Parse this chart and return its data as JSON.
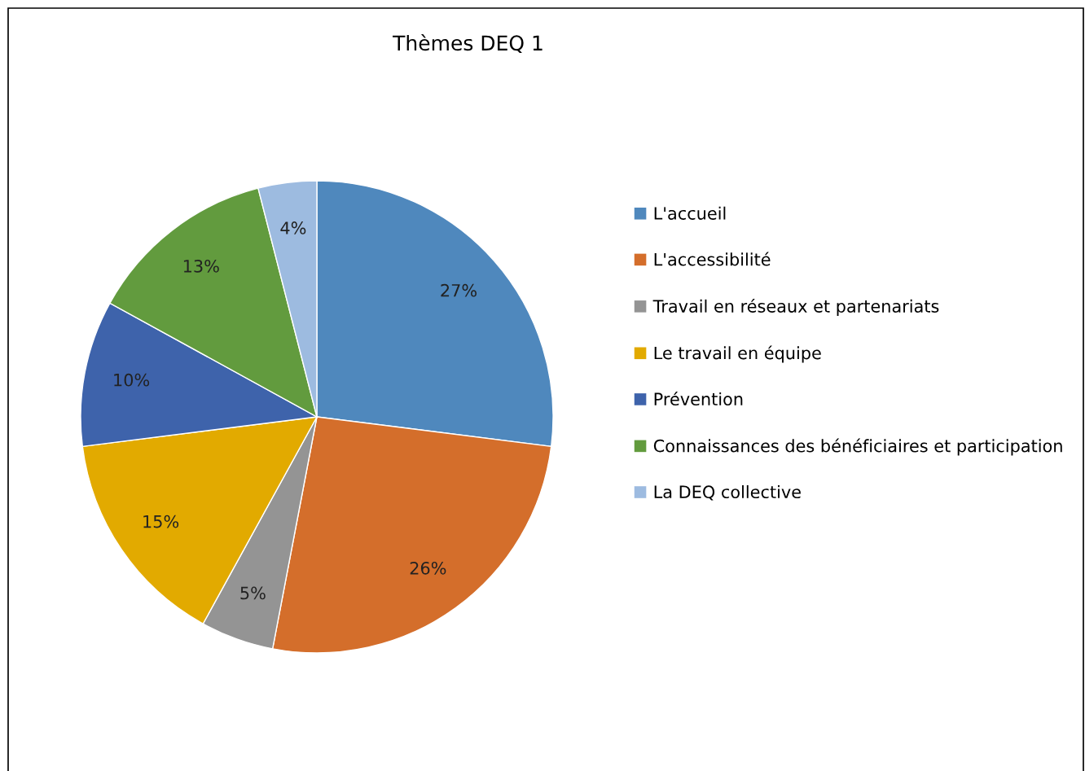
{
  "chart_data": {
    "type": "pie",
    "title": "Thèmes DEQ 1",
    "categories": [
      "L'accueil",
      "L'accessibilité",
      "Travail en réseaux et partenariats",
      "Le travail en équipe",
      "Prévention",
      "Connaissances des bénéficiaires et participation",
      "La DEQ collective"
    ],
    "values": [
      27,
      26,
      5,
      15,
      10,
      13,
      4
    ],
    "colors": [
      "#4f88bd",
      "#d46e2b",
      "#949494",
      "#e2aa00",
      "#3e63ab",
      "#629b3e",
      "#9dbbe0"
    ],
    "value_labels": [
      "27%",
      "26%",
      "5%",
      "15%",
      "10%",
      "13%",
      "4%"
    ],
    "legend": "right"
  }
}
